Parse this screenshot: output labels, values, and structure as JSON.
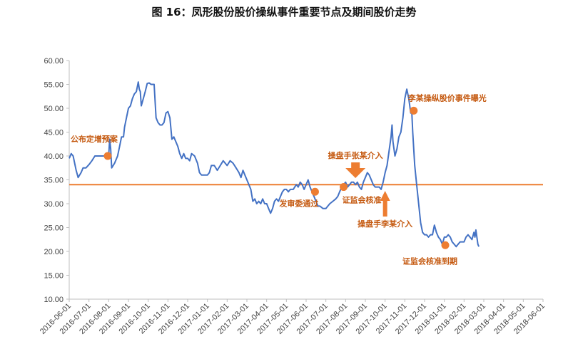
{
  "chart_data": {
    "type": "line",
    "title": "图 16：凤形股份股价操纵事件重要节点及期间股价走势",
    "xlabel": "",
    "ylabel": "",
    "ylim": [
      10,
      60
    ],
    "yticks": [
      "60.00",
      "55.00",
      "50.00",
      "45.00",
      "40.00",
      "35.00",
      "30.00",
      "25.00",
      "20.00",
      "15.00",
      "10.00"
    ],
    "categories": [
      "2016-06-01",
      "2016-07-01",
      "2016-08-01",
      "2016-09-01",
      "2016-10-01",
      "2016-11-01",
      "2016-12-01",
      "2017-01-01",
      "2017-02-01",
      "2017-03-01",
      "2017-04-01",
      "2017-05-01",
      "2017-06-01",
      "2017-07-01",
      "2017-08-01",
      "2017-09-01",
      "2017-10-01",
      "2017-11-01",
      "2017-12-01",
      "2018-01-01",
      "2018-02-01",
      "2018-03-01",
      "2018-04-01",
      "2018-05-01",
      "2018-06-01"
    ],
    "reference_line": 34,
    "colors": {
      "price": "#4472c4",
      "ref": "#ed7d31",
      "marker": "#ed7d31",
      "annotation": "#c55a11"
    },
    "series": [
      {
        "name": "股价",
        "values": [
          [
            0,
            39.5
          ],
          [
            0.1,
            40.5
          ],
          [
            0.2,
            40.0
          ],
          [
            0.35,
            37.0
          ],
          [
            0.45,
            35.5
          ],
          [
            0.6,
            36.5
          ],
          [
            0.7,
            37.5
          ],
          [
            0.85,
            37.5
          ],
          [
            1.0,
            38.2
          ],
          [
            1.15,
            39.0
          ],
          [
            1.3,
            40.0
          ],
          [
            1.6,
            40.0
          ],
          [
            1.9,
            40.0
          ],
          [
            2.0,
            40.0
          ],
          [
            2.05,
            43.5
          ],
          [
            2.1,
            41.5
          ],
          [
            2.15,
            37.5
          ],
          [
            2.3,
            38.5
          ],
          [
            2.45,
            40.0
          ],
          [
            2.55,
            42.0
          ],
          [
            2.65,
            44.0
          ],
          [
            2.75,
            44.0
          ],
          [
            2.8,
            46.0
          ],
          [
            2.9,
            48.0
          ],
          [
            3.0,
            50.0
          ],
          [
            3.1,
            50.5
          ],
          [
            3.2,
            52.0
          ],
          [
            3.3,
            53.0
          ],
          [
            3.4,
            53.5
          ],
          [
            3.5,
            55.5
          ],
          [
            3.55,
            54.0
          ],
          [
            3.6,
            53.5
          ],
          [
            3.65,
            50.5
          ],
          [
            3.75,
            52.0
          ],
          [
            3.85,
            53.5
          ],
          [
            3.95,
            55.2
          ],
          [
            4.05,
            55.3
          ],
          [
            4.15,
            55.0
          ],
          [
            4.3,
            55.0
          ],
          [
            4.4,
            48.0
          ],
          [
            4.5,
            47.0
          ],
          [
            4.6,
            46.5
          ],
          [
            4.7,
            46.5
          ],
          [
            4.8,
            47.0
          ],
          [
            4.9,
            49.0
          ],
          [
            5.0,
            49.3
          ],
          [
            5.1,
            48.0
          ],
          [
            5.2,
            43.5
          ],
          [
            5.3,
            44.0
          ],
          [
            5.4,
            43.0
          ],
          [
            5.5,
            42.0
          ],
          [
            5.6,
            40.5
          ],
          [
            5.7,
            39.5
          ],
          [
            5.8,
            40.5
          ],
          [
            5.9,
            39.5
          ],
          [
            6.0,
            39.5
          ],
          [
            6.1,
            39.0
          ],
          [
            6.2,
            40.5
          ],
          [
            6.35,
            40.0
          ],
          [
            6.5,
            38.5
          ],
          [
            6.6,
            36.5
          ],
          [
            6.7,
            36.0
          ],
          [
            6.85,
            36.0
          ],
          [
            7.0,
            36.0
          ],
          [
            7.1,
            36.5
          ],
          [
            7.2,
            38.0
          ],
          [
            7.35,
            38.0
          ],
          [
            7.5,
            37.0
          ],
          [
            7.65,
            38.0
          ],
          [
            7.8,
            39.0
          ],
          [
            7.9,
            38.5
          ],
          [
            8.0,
            38.0
          ],
          [
            8.15,
            39.0
          ],
          [
            8.3,
            38.5
          ],
          [
            8.45,
            37.5
          ],
          [
            8.6,
            36.5
          ],
          [
            8.7,
            35.5
          ],
          [
            8.8,
            37.0
          ],
          [
            8.9,
            36.0
          ],
          [
            9.0,
            35.0
          ],
          [
            9.1,
            34.0
          ],
          [
            9.2,
            33.0
          ],
          [
            9.3,
            30.5
          ],
          [
            9.4,
            31.0
          ],
          [
            9.5,
            30.0
          ],
          [
            9.6,
            30.5
          ],
          [
            9.7,
            30.0
          ],
          [
            9.8,
            31.0
          ],
          [
            9.9,
            30.0
          ],
          [
            10.0,
            30.0
          ],
          [
            10.1,
            29.0
          ],
          [
            10.2,
            28.0
          ],
          [
            10.3,
            29.0
          ],
          [
            10.4,
            30.5
          ],
          [
            10.5,
            31.0
          ],
          [
            10.6,
            30.5
          ],
          [
            10.7,
            31.5
          ],
          [
            10.8,
            32.5
          ],
          [
            10.9,
            33.0
          ],
          [
            11.0,
            33.0
          ],
          [
            11.1,
            32.5
          ],
          [
            11.2,
            33.0
          ],
          [
            11.35,
            33.0
          ],
          [
            11.5,
            34.0
          ],
          [
            11.6,
            33.5
          ],
          [
            11.7,
            34.5
          ],
          [
            11.8,
            34.0
          ],
          [
            11.9,
            33.0
          ],
          [
            12.0,
            34.0
          ],
          [
            12.1,
            35.0
          ],
          [
            12.2,
            33.5
          ],
          [
            12.3,
            32.5
          ],
          [
            12.4,
            31.5
          ],
          [
            12.5,
            30.5
          ],
          [
            12.6,
            29.5
          ],
          [
            12.7,
            29.5
          ],
          [
            12.85,
            29.0
          ],
          [
            13.0,
            29.0
          ],
          [
            13.1,
            29.5
          ],
          [
            13.2,
            30.0
          ],
          [
            13.35,
            30.5
          ],
          [
            13.5,
            31.0
          ],
          [
            13.6,
            31.5
          ],
          [
            13.7,
            32.5
          ],
          [
            13.8,
            33.5
          ],
          [
            13.9,
            34.0
          ],
          [
            14.0,
            34.5
          ],
          [
            14.1,
            33.5
          ],
          [
            14.2,
            34.0
          ],
          [
            14.3,
            34.5
          ],
          [
            14.4,
            34.5
          ],
          [
            14.5,
            34.0
          ],
          [
            14.6,
            34.5
          ],
          [
            14.7,
            33.5
          ],
          [
            14.8,
            33.0
          ],
          [
            14.9,
            34.5
          ],
          [
            15.0,
            35.5
          ],
          [
            15.1,
            36.5
          ],
          [
            15.2,
            36.0
          ],
          [
            15.3,
            35.0
          ],
          [
            15.4,
            34.0
          ],
          [
            15.5,
            33.5
          ],
          [
            15.6,
            33.5
          ],
          [
            15.7,
            33.5
          ],
          [
            15.8,
            33.0
          ],
          [
            15.9,
            34.5
          ],
          [
            16.0,
            36.5
          ],
          [
            16.1,
            38.0
          ],
          [
            16.2,
            41.0
          ],
          [
            16.3,
            44.0
          ],
          [
            16.35,
            46.5
          ],
          [
            16.4,
            43.0
          ],
          [
            16.5,
            40.0
          ],
          [
            16.6,
            41.5
          ],
          [
            16.7,
            44.0
          ],
          [
            16.8,
            45.0
          ],
          [
            16.9,
            48.0
          ],
          [
            17.0,
            52.0
          ],
          [
            17.1,
            54.0
          ],
          [
            17.2,
            52.0
          ],
          [
            17.3,
            49.0
          ],
          [
            17.35,
            49.5
          ],
          [
            17.4,
            45.0
          ],
          [
            17.5,
            38.0
          ],
          [
            17.6,
            34.0
          ],
          [
            17.7,
            30.0
          ],
          [
            17.8,
            26.0
          ],
          [
            17.9,
            24.0
          ],
          [
            18.0,
            23.5
          ],
          [
            18.1,
            23.5
          ],
          [
            18.2,
            23.0
          ],
          [
            18.3,
            23.5
          ],
          [
            18.4,
            23.5
          ],
          [
            18.5,
            25.5
          ],
          [
            18.6,
            24.0
          ],
          [
            18.7,
            23.0
          ],
          [
            18.8,
            22.5
          ],
          [
            18.9,
            21.5
          ],
          [
            19.0,
            23.0
          ],
          [
            19.1,
            23.0
          ],
          [
            19.2,
            23.5
          ],
          [
            19.3,
            23.0
          ],
          [
            19.4,
            22.0
          ],
          [
            19.5,
            21.5
          ],
          [
            19.6,
            21.0
          ],
          [
            19.7,
            21.5
          ],
          [
            19.8,
            22.0
          ],
          [
            19.9,
            22.0
          ],
          [
            20.0,
            22.0
          ],
          [
            20.1,
            23.0
          ],
          [
            20.2,
            23.5
          ],
          [
            20.3,
            23.0
          ],
          [
            20.4,
            22.5
          ],
          [
            20.5,
            24.0
          ],
          [
            20.55,
            23.0
          ],
          [
            20.6,
            24.5
          ],
          [
            20.65,
            23.0
          ],
          [
            20.7,
            21.5
          ],
          [
            20.75,
            21.0
          ]
        ]
      }
    ],
    "events": [
      {
        "label": "公布定增预案",
        "x": 1.95,
        "y": 40.0
      },
      {
        "label": "发审委通过",
        "x": 12.45,
        "y": 32.5
      },
      {
        "label": "证监会核准",
        "x": 13.9,
        "y": 33.5
      },
      {
        "label": "李某操纵股价事件曝光",
        "x": 17.45,
        "y": 49.5
      },
      {
        "label": "证监会核准到期",
        "x": 19.05,
        "y": 21.3
      }
    ],
    "arrow_annotations": [
      {
        "label": "操盘手张某介入",
        "direction": "down",
        "x": 14.5
      },
      {
        "label": "操盘手李某介入",
        "direction": "up",
        "x": 16.0
      }
    ]
  }
}
